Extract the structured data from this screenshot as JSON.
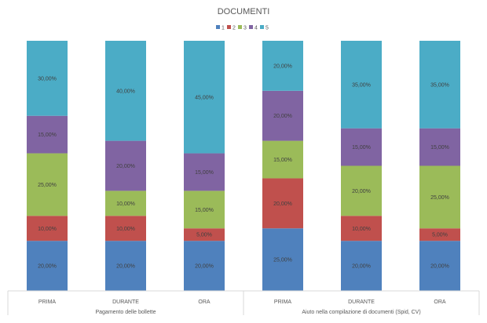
{
  "chart_data": {
    "type": "bar",
    "stacked": true,
    "percent_stacked": true,
    "title": "DOCUMENTI",
    "legend_position": "top",
    "grid": false,
    "ylim": [
      0,
      100
    ],
    "series": [
      {
        "name": "1",
        "color": "#4F81BD",
        "values": [
          20,
          20,
          20,
          25,
          20,
          20
        ]
      },
      {
        "name": "2",
        "color": "#C0504D",
        "values": [
          10,
          10,
          5,
          20,
          10,
          5
        ]
      },
      {
        "name": "3",
        "color": "#9BBB59",
        "values": [
          25,
          10,
          15,
          15,
          20,
          25
        ]
      },
      {
        "name": "4",
        "color": "#8064A2",
        "values": [
          15,
          20,
          15,
          20,
          15,
          15
        ]
      },
      {
        "name": "5",
        "color": "#4BACC6",
        "values": [
          30,
          40,
          45,
          20,
          35,
          35
        ]
      }
    ],
    "data_labels": [
      [
        "20,00%",
        "20,00%",
        "20,00%",
        "25,00%",
        "20,00%",
        "20,00%"
      ],
      [
        "10,00%",
        "10,00%",
        "5,00%",
        "20,00%",
        "10,00%",
        "5,00%"
      ],
      [
        "25,00%",
        "10,00%",
        "15,00%",
        "15,00%",
        "20,00%",
        "25,00%"
      ],
      [
        "15,00%",
        "20,00%",
        "15,00%",
        "20,00%",
        "15,00%",
        "15,00%"
      ],
      [
        "30,00%",
        "40,00%",
        "45,00%",
        "20,00%",
        "35,00%",
        "35,00%"
      ]
    ],
    "categories": [
      "PRIMA",
      "DURANTE",
      "ORA",
      "PRIMA",
      "DURANTE",
      "ORA"
    ],
    "groups": [
      {
        "label": "Pagamento delle bollette",
        "span": 3
      },
      {
        "label": "Aiuto nella compilazione di documenti (Spid, CV)",
        "span": 3
      }
    ]
  }
}
